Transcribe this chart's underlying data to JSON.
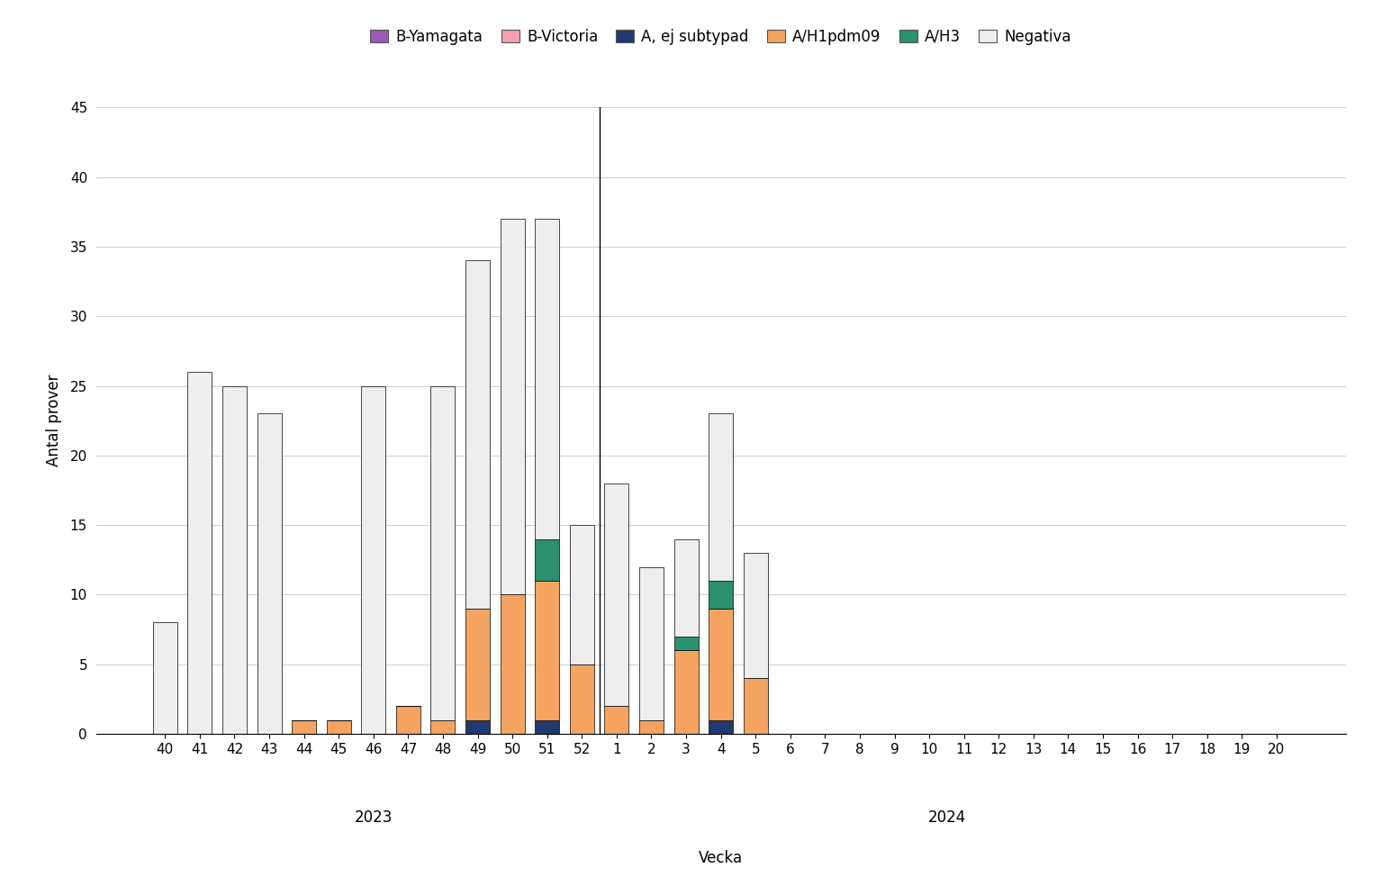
{
  "weeks": [
    "40",
    "41",
    "42",
    "43",
    "44",
    "45",
    "46",
    "47",
    "48",
    "49",
    "50",
    "51",
    "52",
    "1",
    "2",
    "3",
    "4",
    "5",
    "6",
    "7",
    "8",
    "9",
    "10",
    "11",
    "12",
    "13",
    "14",
    "15",
    "16",
    "17",
    "18",
    "19",
    "20"
  ],
  "series": {
    "B_Yamagata": [
      0,
      0,
      0,
      0,
      0,
      0,
      0,
      0,
      0,
      0,
      0,
      0,
      0,
      0,
      0,
      0,
      0,
      0,
      0,
      0,
      0,
      0,
      0,
      0,
      0,
      0,
      0,
      0,
      0,
      0,
      0,
      0,
      0
    ],
    "B_Victoria": [
      0,
      0,
      0,
      0,
      0,
      0,
      0,
      0,
      0,
      0,
      0,
      0,
      0,
      0,
      0,
      0,
      0,
      0,
      0,
      0,
      0,
      0,
      0,
      0,
      0,
      0,
      0,
      0,
      0,
      0,
      0,
      0,
      0
    ],
    "A_ej_subtypad": [
      0,
      0,
      0,
      0,
      0,
      0,
      0,
      0,
      0,
      1,
      0,
      1,
      0,
      0,
      0,
      0,
      1,
      0,
      0,
      0,
      0,
      0,
      0,
      0,
      0,
      0,
      0,
      0,
      0,
      0,
      0,
      0,
      0
    ],
    "A_H1pdm09": [
      0,
      0,
      0,
      0,
      1,
      1,
      0,
      2,
      1,
      8,
      10,
      10,
      5,
      2,
      1,
      6,
      8,
      4,
      0,
      0,
      0,
      0,
      0,
      0,
      0,
      0,
      0,
      0,
      0,
      0,
      0,
      0,
      0
    ],
    "A_H3": [
      0,
      0,
      0,
      0,
      0,
      0,
      0,
      0,
      0,
      0,
      0,
      3,
      0,
      0,
      0,
      1,
      2,
      0,
      0,
      0,
      0,
      0,
      0,
      0,
      0,
      0,
      0,
      0,
      0,
      0,
      0,
      0,
      0
    ],
    "Negativa": [
      8,
      26,
      25,
      23,
      0,
      0,
      25,
      0,
      24,
      25,
      27,
      23,
      10,
      16,
      11,
      7,
      12,
      9,
      0,
      0,
      0,
      0,
      0,
      0,
      0,
      0,
      0,
      0,
      0,
      0,
      0,
      0,
      0
    ]
  },
  "colors": {
    "B_Yamagata": "#9b59b6",
    "B_Victoria": "#f4a0b0",
    "A_ej_subtypad": "#1f3a6e",
    "A_H1pdm09": "#f4a460",
    "A_H3": "#2a9070",
    "Negativa": "#eeeeee"
  },
  "legend_labels": [
    "B-Yamagata",
    "B-Victoria",
    "A, ej subtypad",
    "A/H1pdm09",
    "A/H3",
    "Negativa"
  ],
  "series_keys_ordered": [
    "B_Yamagata",
    "B_Victoria",
    "A_ej_subtypad",
    "A_H1pdm09",
    "A_H3",
    "Negativa"
  ],
  "ylabel": "Antal prover",
  "xlabel": "Vecka",
  "ylim": [
    0,
    45
  ],
  "yticks": [
    0,
    5,
    10,
    15,
    20,
    25,
    30,
    35,
    40,
    45
  ],
  "divider_after_index": 12,
  "bar_edgecolor": "#000000",
  "bar_linewidth": 0.5,
  "bar_width": 0.7,
  "year_2023_label": "2023",
  "year_2024_label": "2024",
  "grid_color": "#bbbbbb",
  "grid_linewidth": 0.5
}
